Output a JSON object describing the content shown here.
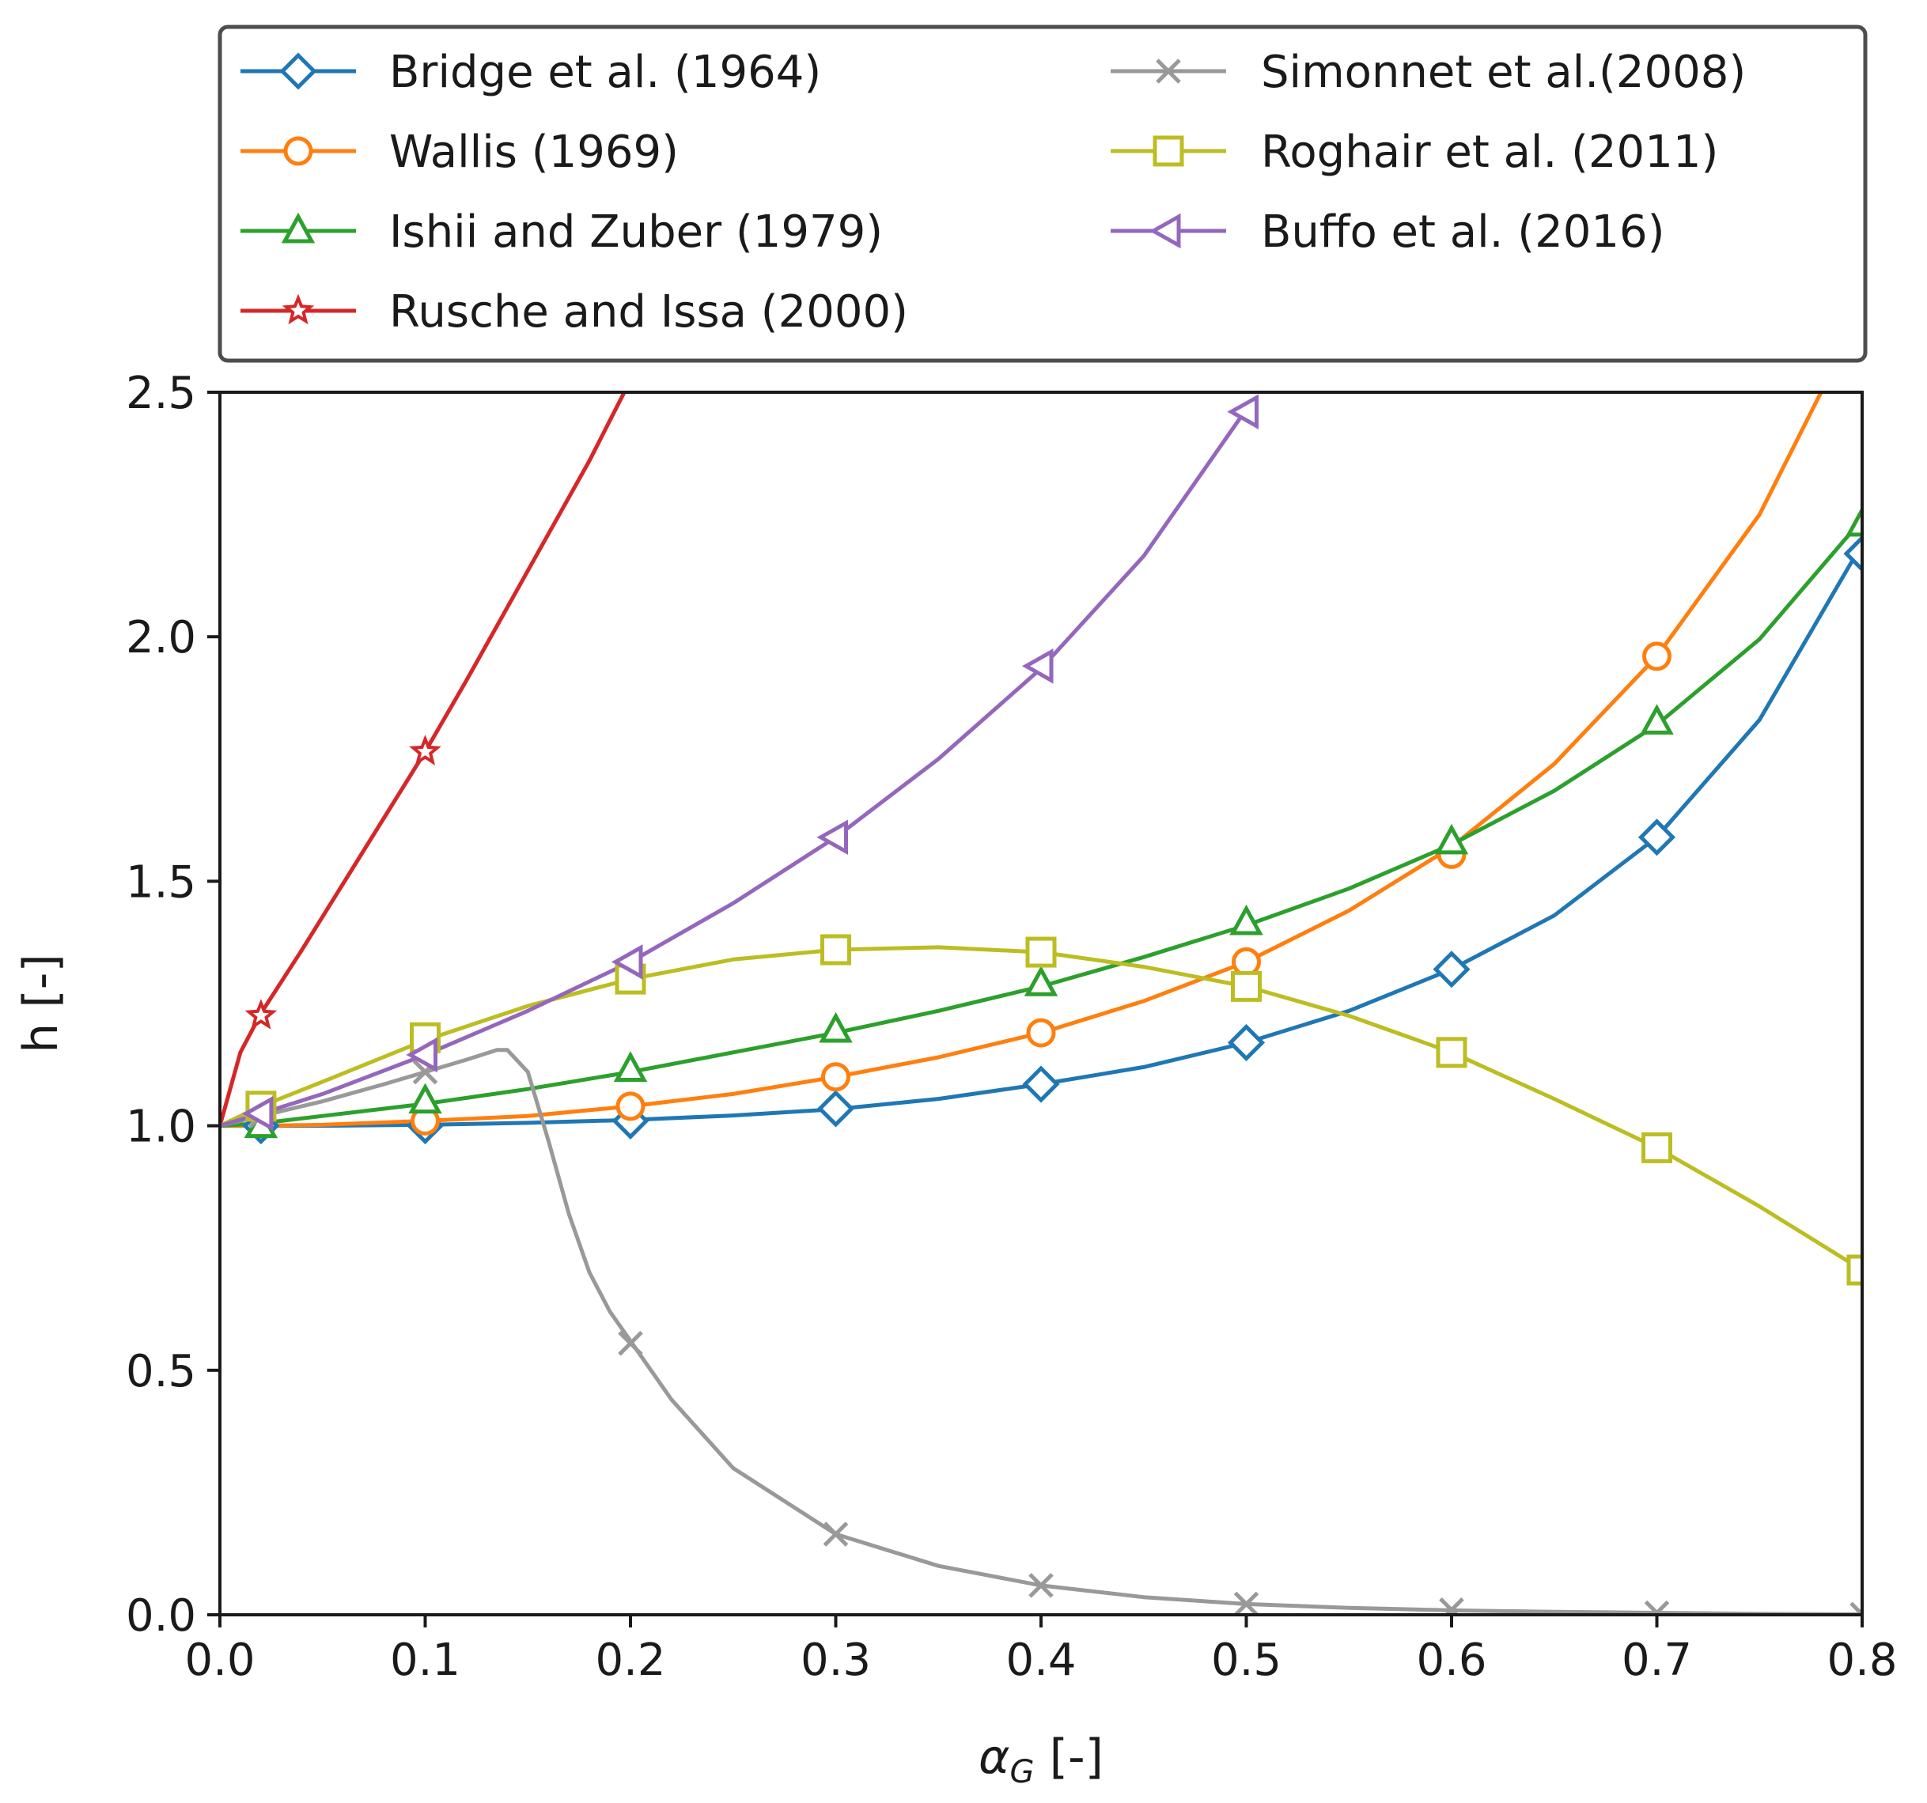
{
  "chart_data": {
    "type": "line",
    "title": "",
    "xlabel": "α",
    "xlabel_sub": "G",
    "xlabel_suffix": " [-]",
    "ylabel": "h [-]",
    "xlim": [
      0.0,
      0.8
    ],
    "ylim": [
      0.0,
      2.5
    ],
    "xticks": [
      0.0,
      0.1,
      0.2,
      0.3,
      0.4,
      0.5,
      0.6,
      0.7,
      0.8
    ],
    "yticks": [
      0.0,
      0.5,
      1.0,
      1.5,
      2.0,
      2.5
    ],
    "xtick_labels": [
      "0.0",
      "0.1",
      "0.2",
      "0.3",
      "0.4",
      "0.5",
      "0.6",
      "0.7",
      "0.8"
    ],
    "ytick_labels": [
      "0.0",
      "0.5",
      "1.0",
      "1.5",
      "2.0",
      "2.5"
    ],
    "grid": false,
    "legend_position": "top, outside plot, 2 columns",
    "series": [
      {
        "name": "Bridge et al. (1964)",
        "color": "#1f77b4",
        "marker": "diamond",
        "line_x": [
          0.0,
          0.02,
          0.05,
          0.1,
          0.15,
          0.2,
          0.25,
          0.3,
          0.35,
          0.4,
          0.45,
          0.5,
          0.55,
          0.6,
          0.65,
          0.7,
          0.75,
          0.8
        ],
        "line_y": [
          1.0,
          1.0,
          1.0,
          1.002,
          1.006,
          1.012,
          1.021,
          1.034,
          1.055,
          1.085,
          1.12,
          1.17,
          1.235,
          1.32,
          1.43,
          1.59,
          1.83,
          2.19
        ],
        "marker_x": [
          0.02,
          0.1,
          0.2,
          0.3,
          0.4,
          0.5,
          0.6,
          0.7,
          0.8
        ],
        "marker_y": [
          1.0,
          1.0,
          1.01,
          1.035,
          1.085,
          1.17,
          1.32,
          1.59,
          2.17
        ]
      },
      {
        "name": "Wallis (1969)",
        "color": "#ff7f0e",
        "marker": "circle",
        "line_x": [
          0.0,
          0.02,
          0.05,
          0.1,
          0.15,
          0.2,
          0.25,
          0.3,
          0.35,
          0.4,
          0.45,
          0.5,
          0.55,
          0.6,
          0.65,
          0.7,
          0.75,
          0.78
        ],
        "line_y": [
          1.0,
          1.0,
          1.002,
          1.01,
          1.02,
          1.04,
          1.065,
          1.1,
          1.14,
          1.19,
          1.255,
          1.335,
          1.44,
          1.57,
          1.74,
          1.96,
          2.25,
          2.5
        ],
        "marker_x": [
          0.1,
          0.2,
          0.3,
          0.4,
          0.5,
          0.6,
          0.7
        ],
        "marker_y": [
          1.01,
          1.04,
          1.1,
          1.19,
          1.335,
          1.555,
          1.96
        ]
      },
      {
        "name": "Ishii and Zuber (1979)",
        "color": "#2ca02c",
        "marker": "triangle-up",
        "line_x": [
          0.0,
          0.02,
          0.05,
          0.1,
          0.15,
          0.2,
          0.25,
          0.3,
          0.35,
          0.4,
          0.45,
          0.5,
          0.55,
          0.6,
          0.65,
          0.7,
          0.75,
          0.8
        ],
        "line_y": [
          1.0,
          1.005,
          1.02,
          1.045,
          1.075,
          1.11,
          1.15,
          1.19,
          1.235,
          1.285,
          1.345,
          1.41,
          1.485,
          1.575,
          1.685,
          1.82,
          1.995,
          2.24
        ],
        "marker_x": [
          0.02,
          0.1,
          0.2,
          0.3,
          0.4,
          0.5,
          0.6,
          0.7,
          0.8
        ],
        "marker_y": [
          1.0,
          1.05,
          1.115,
          1.195,
          1.29,
          1.415,
          1.58,
          1.825,
          2.23
        ]
      },
      {
        "name": "Rusche and Issa (2000)",
        "color": "#d62728",
        "marker": "star",
        "line_x": [
          0.0,
          0.01,
          0.02,
          0.04,
          0.06,
          0.08,
          0.1,
          0.12,
          0.14,
          0.16,
          0.18,
          0.197
        ],
        "line_y": [
          1.0,
          1.15,
          1.23,
          1.36,
          1.495,
          1.63,
          1.765,
          1.91,
          2.06,
          2.21,
          2.36,
          2.5
        ],
        "marker_x": [
          0.02,
          0.1
        ],
        "marker_y": [
          1.225,
          1.765
        ]
      },
      {
        "name": "Simonnet et al.(2008)",
        "color": "#999999",
        "marker": "x",
        "line_x": [
          0.0,
          0.02,
          0.05,
          0.08,
          0.1,
          0.12,
          0.135,
          0.14,
          0.15,
          0.16,
          0.17,
          0.18,
          0.19,
          0.2,
          0.22,
          0.25,
          0.3,
          0.35,
          0.4,
          0.45,
          0.5,
          0.55,
          0.6,
          0.65,
          0.7,
          0.75,
          0.8
        ],
        "line_y": [
          1.0,
          1.02,
          1.05,
          1.085,
          1.11,
          1.135,
          1.155,
          1.155,
          1.11,
          0.97,
          0.82,
          0.7,
          0.62,
          0.56,
          0.44,
          0.3,
          0.165,
          0.1,
          0.06,
          0.036,
          0.022,
          0.014,
          0.009,
          0.006,
          0.004,
          0.002,
          0.001
        ],
        "marker_x": [
          0.02,
          0.1,
          0.2,
          0.3,
          0.4,
          0.5,
          0.6,
          0.7,
          0.8
        ],
        "marker_y": [
          1.02,
          1.11,
          0.555,
          0.165,
          0.06,
          0.022,
          0.01,
          0.004,
          0.001
        ]
      },
      {
        "name": " Roghair et al. (2011)",
        "color": "#bcbd22",
        "marker": "square",
        "line_x": [
          0.0,
          0.02,
          0.05,
          0.1,
          0.15,
          0.2,
          0.25,
          0.3,
          0.35,
          0.4,
          0.45,
          0.5,
          0.55,
          0.6,
          0.65,
          0.7,
          0.75,
          0.8
        ],
        "line_y": [
          1.0,
          1.04,
          1.09,
          1.175,
          1.245,
          1.3,
          1.34,
          1.36,
          1.365,
          1.355,
          1.325,
          1.285,
          1.225,
          1.15,
          1.055,
          0.955,
          0.835,
          0.705
        ],
        "marker_x": [
          0.02,
          0.1,
          0.2,
          0.3,
          0.4,
          0.5,
          0.6,
          0.7,
          0.8
        ],
        "marker_y": [
          1.04,
          1.18,
          1.3,
          1.36,
          1.355,
          1.285,
          1.15,
          0.955,
          0.705
        ]
      },
      {
        "name": " Buffo et al. (2016)",
        "color": "#9467bd",
        "marker": "triangle-left",
        "line_x": [
          0.0,
          0.02,
          0.05,
          0.1,
          0.15,
          0.2,
          0.25,
          0.3,
          0.35,
          0.4,
          0.45,
          0.5
        ],
        "line_y": [
          1.0,
          1.025,
          1.065,
          1.145,
          1.235,
          1.335,
          1.455,
          1.59,
          1.75,
          1.935,
          2.165,
          2.465
        ],
        "marker_x": [
          0.02,
          0.1,
          0.2,
          0.3,
          0.4,
          0.5
        ],
        "marker_y": [
          1.025,
          1.145,
          1.335,
          1.59,
          1.94,
          2.46
        ]
      }
    ],
    "legend_order": [
      0,
      4,
      1,
      5,
      2,
      6,
      3
    ]
  }
}
